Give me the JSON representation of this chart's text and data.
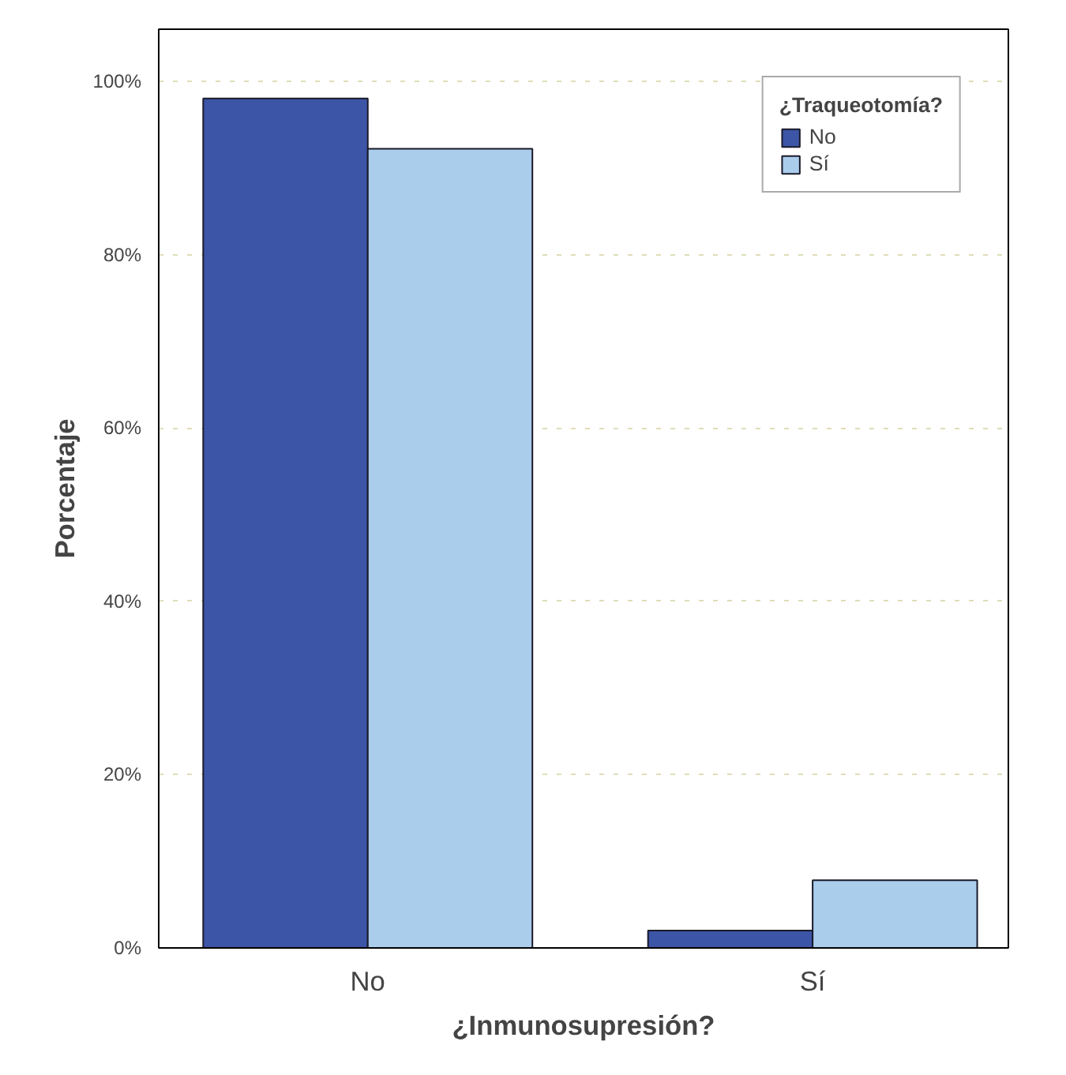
{
  "chart_data": {
    "type": "bar",
    "xlabel": "¿Inmunosupresión?",
    "ylabel": "Porcentaje",
    "legend_title": "¿Traqueotomía?",
    "categories": [
      "No",
      "Sí"
    ],
    "series": [
      {
        "name": "No",
        "color": "#3d55a6",
        "values": [
          98.0,
          2.0
        ]
      },
      {
        "name": "Sí",
        "color": "#aacdec",
        "values": [
          92.2,
          7.8
        ]
      }
    ],
    "ylim": [
      0,
      106
    ],
    "yticks": [
      {
        "value": 0,
        "label": "0%"
      },
      {
        "value": 20,
        "label": "20%"
      },
      {
        "value": 40,
        "label": "40%"
      },
      {
        "value": 60,
        "label": "60%"
      },
      {
        "value": 80,
        "label": "80%"
      },
      {
        "value": 100,
        "label": "100%"
      }
    ],
    "grid": "y",
    "legend": "top right"
  }
}
